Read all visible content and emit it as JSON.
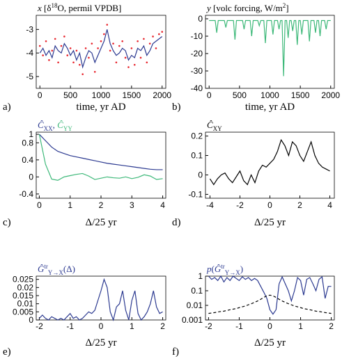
{
  "chart_data": [
    {
      "type": "line",
      "letter": "a)",
      "xlabel": "time, yr AD",
      "title": [
        {
          "text": "x",
          "style": "italic"
        },
        {
          "text": " [δ"
        },
        {
          "text": "18",
          "style": "sup"
        },
        {
          "text": "O, permil VPDB]"
        }
      ],
      "x": [
        0,
        50,
        100,
        150,
        200,
        250,
        300,
        350,
        400,
        450,
        500,
        550,
        600,
        650,
        700,
        750,
        800,
        850,
        900,
        950,
        1000,
        1050,
        1100,
        1150,
        1200,
        1250,
        1300,
        1350,
        1400,
        1450,
        1500,
        1550,
        1600,
        1650,
        1700,
        1750,
        1800,
        1850,
        1900,
        1950,
        2000
      ],
      "series": [
        {
          "style": "dots",
          "color": "#e8242c",
          "values": [
            -3.7,
            -4.1,
            -3.5,
            -4.3,
            -3.9,
            -3.4,
            -4.4,
            -3.7,
            -3.3,
            -4.1,
            -3.8,
            -4.4,
            -3.9,
            -4.5,
            -4.9,
            -3.8,
            -4.2,
            -3.6,
            -4.8,
            -3.8,
            -3.5,
            -3.2,
            -2.8,
            -3.9,
            -3.6,
            -4.4,
            -3.7,
            -3.5,
            -4.2,
            -4.6,
            -3.8,
            -4.5,
            -3.5,
            -4.2,
            -3.4,
            -4.4,
            -3.6,
            -3.3,
            -3.8,
            -3.2,
            -3.1
          ]
        },
        {
          "style": "line",
          "color": "#2b3990",
          "values": [
            -4.0,
            -3.8,
            -4.1,
            -3.9,
            -4.2,
            -3.7,
            -3.9,
            -4.0,
            -3.6,
            -3.8,
            -4.1,
            -3.9,
            -4.3,
            -4.0,
            -4.6,
            -4.2,
            -3.9,
            -4.0,
            -4.4,
            -4.1,
            -3.8,
            -3.5,
            -3.0,
            -3.6,
            -3.9,
            -4.1,
            -4.0,
            -3.8,
            -3.9,
            -4.3,
            -4.1,
            -4.2,
            -3.8,
            -3.9,
            -3.7,
            -4.1,
            -3.9,
            -3.6,
            -3.5,
            -3.4,
            -3.3
          ]
        }
      ],
      "xlim": [
        -60,
        2060
      ],
      "xticks": [
        0,
        500,
        1000,
        1500,
        2000
      ],
      "ylim": [
        -5.5,
        -2.4
      ],
      "yticks": [
        -5,
        -4,
        -3
      ]
    },
    {
      "type": "line",
      "letter": "b)",
      "xlabel": "time, yr AD",
      "title": [
        {
          "text": "y",
          "style": "italic"
        },
        {
          "text": " [volc forcing, W/m"
        },
        {
          "text": "2",
          "style": "sup"
        },
        {
          "text": "]"
        }
      ],
      "x": [
        0,
        25,
        50,
        75,
        100,
        125,
        150,
        175,
        200,
        225,
        250,
        275,
        300,
        325,
        350,
        375,
        400,
        425,
        450,
        475,
        500,
        525,
        550,
        575,
        600,
        625,
        650,
        675,
        700,
        725,
        750,
        775,
        800,
        825,
        850,
        875,
        900,
        925,
        950,
        975,
        1000,
        1025,
        1050,
        1075,
        1100,
        1125,
        1150,
        1175,
        1200,
        1225,
        1250,
        1275,
        1300,
        1325,
        1350,
        1375,
        1400,
        1425,
        1450,
        1475,
        1500,
        1525,
        1550,
        1575,
        1600,
        1625,
        1650,
        1675,
        1700,
        1725,
        1750,
        1775,
        1800,
        1825,
        1850,
        1875,
        1900,
        1925,
        1950,
        1975,
        2000
      ],
      "series": [
        {
          "style": "line",
          "color": "#3cb878",
          "values": [
            -1,
            -1,
            -1,
            -1,
            -1,
            -8,
            -1,
            -1,
            -1,
            -1,
            -1,
            -5,
            -1,
            -1,
            -1,
            -1,
            -1,
            -12,
            -1,
            -1,
            -1,
            -1,
            -1,
            -6,
            -1,
            -1,
            -1,
            -1,
            -10,
            -1,
            -1,
            -1,
            -1,
            -4,
            -1,
            -1,
            -1,
            -14,
            -1,
            -1,
            -1,
            -1,
            -9,
            -1,
            -1,
            -1,
            -6,
            -1,
            -1,
            -33,
            -1,
            -1,
            -11,
            -1,
            -1,
            -7,
            -1,
            -1,
            -15,
            -1,
            -1,
            -9,
            -1,
            -1,
            -1,
            -1,
            -13,
            -1,
            -1,
            -1,
            -8,
            -1,
            -1,
            -10,
            -1,
            -1,
            -1,
            -6,
            -1,
            -1,
            -1
          ]
        }
      ],
      "xlim": [
        -60,
        2060
      ],
      "xticks": [
        0,
        500,
        1000,
        1500,
        2000
      ],
      "ylim": [
        -40,
        2
      ],
      "yticks": [
        -40,
        -30,
        -20,
        -10,
        0
      ]
    },
    {
      "type": "line",
      "letter": "c)",
      "xlabel": "Δ/25 yr",
      "title": [
        {
          "text": "Ĉ",
          "style": "italic",
          "color": "#2b3990"
        },
        {
          "text": "XX",
          "style": "sub",
          "color": "#2b3990"
        },
        {
          "text": ", ",
          "color": "#2b3990"
        },
        {
          "text": "Ĉ",
          "style": "italic",
          "color": "#3cb878"
        },
        {
          "text": "YY",
          "style": "sub",
          "color": "#3cb878"
        }
      ],
      "x": [
        0,
        0.2,
        0.4,
        0.6,
        0.8,
        1,
        1.2,
        1.4,
        1.6,
        1.8,
        2,
        2.2,
        2.4,
        2.6,
        2.8,
        3,
        3.2,
        3.4,
        3.6,
        3.8,
        4
      ],
      "series": [
        {
          "style": "line",
          "color": "#2b3990",
          "values": [
            1,
            0.85,
            0.7,
            0.6,
            0.55,
            0.5,
            0.47,
            0.44,
            0.41,
            0.38,
            0.35,
            0.32,
            0.3,
            0.28,
            0.26,
            0.24,
            0.22,
            0.2,
            0.18,
            0.17,
            0.17
          ]
        },
        {
          "style": "line",
          "color": "#3cb878",
          "values": [
            1,
            0.3,
            -0.05,
            -0.08,
            0,
            0.03,
            0.06,
            0.08,
            0.02,
            -0.06,
            -0.03,
            0,
            -0.02,
            -0.03,
            0,
            -0.04,
            -0.01,
            0.05,
            0.02,
            -0.06,
            -0.04
          ]
        }
      ],
      "xlim": [
        -0.1,
        4.1
      ],
      "xticks": [
        0,
        1,
        2,
        3,
        4
      ],
      "ylim": [
        -0.5,
        1.05
      ],
      "yticks": [
        -0.4,
        0,
        0.4,
        0.8,
        1
      ]
    },
    {
      "type": "line",
      "letter": "d)",
      "xlabel": "Δ/25 yr",
      "title": [
        {
          "text": "Ĉ",
          "style": "italic"
        },
        {
          "text": "XY",
          "style": "sub"
        }
      ],
      "x": [
        -4,
        -3.75,
        -3.5,
        -3.25,
        -3,
        -2.75,
        -2.5,
        -2.25,
        -2,
        -1.75,
        -1.5,
        -1.25,
        -1,
        -0.75,
        -0.5,
        -0.25,
        0,
        0.25,
        0.5,
        0.75,
        1,
        1.25,
        1.5,
        1.75,
        2,
        2.25,
        2.5,
        2.75,
        3,
        3.25,
        3.5,
        3.75,
        4
      ],
      "series": [
        {
          "style": "line",
          "color": "#000000",
          "values": [
            -0.02,
            -0.05,
            -0.02,
            0,
            0.01,
            -0.02,
            -0.04,
            -0.01,
            0.02,
            -0.03,
            -0.05,
            0,
            -0.04,
            0.02,
            0.05,
            0.04,
            0.06,
            0.08,
            0.12,
            0.18,
            0.15,
            0.1,
            0.17,
            0.15,
            0.1,
            0.07,
            0.12,
            0.17,
            0.1,
            0.06,
            0.04,
            0.03,
            0.02
          ]
        }
      ],
      "xlim": [
        -4.3,
        4.3
      ],
      "xticks": [
        -4,
        -2,
        0,
        2,
        4
      ],
      "ylim": [
        -0.12,
        0.22
      ],
      "yticks": [
        -0.1,
        0,
        0.1,
        0.2
      ]
    },
    {
      "type": "line",
      "letter": "e)",
      "xlabel": "Δ/25 yr",
      "title": [
        {
          "text": "Ĝ",
          "style": "italic"
        },
        {
          "text": "tr",
          "style": "sup"
        },
        {
          "text": "Y→X",
          "style": "sub"
        },
        {
          "text": "(Δ)"
        }
      ],
      "x": [
        -2,
        -1.9,
        -1.8,
        -1.7,
        -1.6,
        -1.5,
        -1.4,
        -1.3,
        -1.2,
        -1.1,
        -1,
        -0.9,
        -0.8,
        -0.7,
        -0.6,
        -0.5,
        -0.4,
        -0.3,
        -0.2,
        -0.1,
        0,
        0.1,
        0.2,
        0.3,
        0.4,
        0.5,
        0.6,
        0.7,
        0.8,
        0.9,
        1,
        1.1,
        1.2,
        1.3,
        1.4,
        1.5,
        1.6,
        1.7,
        1.8,
        1.9,
        2
      ],
      "series": [
        {
          "style": "line",
          "color": "#2b3990",
          "values": [
            0.001,
            0.003,
            0.001,
            0,
            0.002,
            0.001,
            0,
            0.001,
            0,
            0.002,
            0.004,
            0.001,
            0.002,
            0,
            0.001,
            0.003,
            0.005,
            0.004,
            0.006,
            0.012,
            0.018,
            0.025,
            0.02,
            0.005,
            0,
            0.008,
            0.01,
            0.018,
            0.006,
            0,
            0.012,
            0.018,
            0.004,
            0,
            0.002,
            0.005,
            0.01,
            0.018,
            0.008,
            0.004,
            0.005
          ]
        }
      ],
      "xlim": [
        -2.1,
        2.1
      ],
      "xticks": [
        -2,
        -1,
        0,
        1,
        2
      ],
      "ylim": [
        0,
        0.027
      ],
      "yticks": [
        0,
        0.005,
        0.01,
        0.015,
        0.02,
        0.025
      ]
    },
    {
      "type": "line",
      "letter": "f)",
      "xlabel": "Δ/25 yr",
      "yscale": "log",
      "title": [
        {
          "text": "p",
          "style": "italic"
        },
        {
          "text": "("
        },
        {
          "text": "Ĝ",
          "style": "italic"
        },
        {
          "text": "tr",
          "style": "sup"
        },
        {
          "text": "Y→X",
          "style": "sub"
        },
        {
          "text": ")"
        }
      ],
      "x": [
        -2,
        -1.9,
        -1.8,
        -1.7,
        -1.6,
        -1.5,
        -1.4,
        -1.3,
        -1.2,
        -1.1,
        -1,
        -0.9,
        -0.8,
        -0.7,
        -0.6,
        -0.5,
        -0.4,
        -0.3,
        -0.2,
        -0.1,
        0,
        0.1,
        0.2,
        0.3,
        0.4,
        0.5,
        0.6,
        0.7,
        0.8,
        0.9,
        1,
        1.1,
        1.2,
        1.3,
        1.4,
        1.5,
        1.6,
        1.7,
        1.8,
        1.9,
        2
      ],
      "series": [
        {
          "style": "line",
          "color": "#2b3990",
          "values": [
            1,
            0.6,
            0.8,
            0.5,
            1,
            0.4,
            0.8,
            0.5,
            1,
            0.7,
            0.5,
            0.9,
            0.6,
            0.8,
            0.5,
            0.7,
            0.5,
            0.2,
            0.08,
            0.03,
            0.005,
            0.0025,
            0.005,
            0.3,
            0.9,
            0.3,
            0.1,
            0.02,
            0.1,
            0.8,
            0.5,
            0.05,
            0.6,
            0.8,
            0.3,
            0.1,
            0.6,
            0.9,
            0.03,
            0.2,
            0.2
          ]
        },
        {
          "style": "dashed",
          "color": "#000000",
          "values": [
            0.0028,
            0.003,
            0.0032,
            0.0035,
            0.0038,
            0.004,
            0.0045,
            0.005,
            0.0055,
            0.006,
            0.007,
            0.008,
            0.009,
            0.011,
            0.013,
            0.016,
            0.02,
            0.026,
            0.035,
            0.045,
            0.05,
            0.045,
            0.035,
            0.026,
            0.02,
            0.016,
            0.013,
            0.011,
            0.009,
            0.008,
            0.007,
            0.006,
            0.0055,
            0.005,
            0.0045,
            0.004,
            0.0038,
            0.0035,
            0.0032,
            0.003,
            0.0028
          ]
        }
      ],
      "xlim": [
        -2.1,
        2.1
      ],
      "xticks": [
        -2,
        -1,
        0,
        1,
        2
      ],
      "ylim": [
        0.001,
        1
      ],
      "yticks": [
        0.001,
        0.01,
        0.1,
        1
      ]
    }
  ]
}
